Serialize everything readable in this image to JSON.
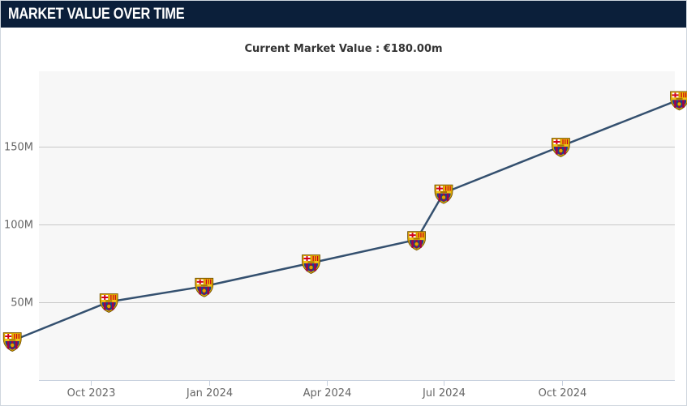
{
  "widget": {
    "title": "MARKET VALUE OVER TIME",
    "subtitle": "Current Market Value : €180.00m"
  },
  "colors": {
    "header_bg": "#0b1f3a",
    "line": "#34506f",
    "plot_bg": "#f7f7f7",
    "grid": "#c8c8c8",
    "crest_blue": "#1c3f8f",
    "crest_garnet": "#a50044",
    "crest_gold": "#f2c200"
  },
  "chart_data": {
    "type": "line",
    "title": "",
    "xlabel": "",
    "ylabel": "",
    "marker": "club-crest-icon",
    "x_ticks": [
      "Oct 2023",
      "Jan 2024",
      "Apr 2024",
      "Jul 2024",
      "Oct 2024"
    ],
    "y_ticks": [
      "50M",
      "100M",
      "150M"
    ],
    "y_tick_values": [
      50,
      100,
      150
    ],
    "ylim": [
      0,
      200
    ],
    "grid": true,
    "legend": "none",
    "series": [
      {
        "unit": "€m",
        "points": [
          {
            "date": "2023-08-01",
            "value": 25
          },
          {
            "date": "2023-10-15",
            "value": 50
          },
          {
            "date": "2023-12-28",
            "value": 60
          },
          {
            "date": "2024-03-20",
            "value": 75
          },
          {
            "date": "2024-06-10",
            "value": 90
          },
          {
            "date": "2024-07-01",
            "value": 120
          },
          {
            "date": "2024-09-30",
            "value": 150
          },
          {
            "date": "2024-12-31",
            "value": 180
          }
        ]
      }
    ]
  }
}
